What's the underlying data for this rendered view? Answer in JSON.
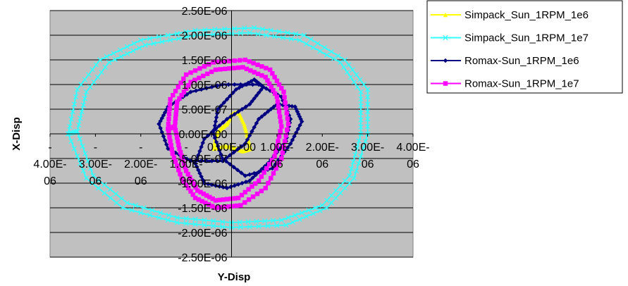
{
  "chart_data": {
    "type": "scatter",
    "title": "",
    "xlabel": "Y-Disp",
    "ylabel": "X-Disp",
    "xlim": [
      -4e-06,
      4e-06
    ],
    "ylim": [
      -2.5e-06,
      2.5e-06
    ],
    "x_tick_labels": [
      "-4.00E-06",
      "-3.00E-06",
      "-2.00E-06",
      "-1.00E-06",
      "0.00E+00",
      "1.00E-06",
      "2.00E-06",
      "3.00E-06",
      "4.00E-06"
    ],
    "y_tick_labels": [
      "2.50E-06",
      "2.00E-06",
      "1.50E-06",
      "1.00E-06",
      "5.00E-07",
      "0.00E+00",
      "-5.00E-07",
      "-1.00E-06",
      "-1.50E-06",
      "-2.00E-06",
      "-2.50E-06"
    ],
    "grid": true,
    "legend_position": "right-top",
    "plot_background": "#c0c0c0",
    "series": [
      {
        "name": "Simpack_Sun_1RPM_1e6",
        "color": "#ffff00",
        "marker": "triangle",
        "points": [
          [
            0.0,
            4e-07
          ],
          [
            1.5e-07,
            4.5e-07
          ],
          [
            2.8e-07,
            2e-07
          ],
          [
            3.5e-07,
            -5e-08
          ],
          [
            4.2e-07,
            -3e-07
          ],
          [
            2.5e-07,
            -3.5e-07
          ],
          [
            5e-08,
            -2.8e-07
          ],
          [
            -1.5e-07,
            -2.5e-07
          ],
          [
            -3.8e-07,
            -3e-07
          ],
          [
            -3.5e-07,
            -5e-08
          ],
          [
            -2.5e-07,
            1e-07
          ],
          [
            -1e-07,
            2e-07
          ],
          [
            0.0,
            4e-07
          ]
        ]
      },
      {
        "name": "Simpack_Sun_1RPM_1e7",
        "color": "#33ffff",
        "marker": "x",
        "points": [
          [
            -3.6e-06,
            0.0
          ],
          [
            -3.4e-06,
            9e-07
          ],
          [
            -2.9e-06,
            1.5e-06
          ],
          [
            -2e-06,
            1.9e-06
          ],
          [
            -8e-07,
            2.1e-06
          ],
          [
            5e-07,
            2.15e-06
          ],
          [
            1.6e-06,
            2e-06
          ],
          [
            2.5e-06,
            1.5e-06
          ],
          [
            3e-06,
            9e-07
          ],
          [
            3e-06,
            0.0
          ],
          [
            2.7e-06,
            -9e-07
          ],
          [
            2.1e-06,
            -1.5e-06
          ],
          [
            1.2e-06,
            -1.85e-06
          ],
          [
            0.0,
            -1.9e-06
          ],
          [
            -1.2e-06,
            -1.8e-06
          ],
          [
            -2.4e-06,
            -1.5e-06
          ],
          [
            -3.2e-06,
            -9e-07
          ],
          [
            -3.6e-06,
            0.0
          ],
          [
            -3.4e-06,
            5e-08
          ],
          [
            -3.2e-06,
            8.5e-07
          ],
          [
            -2.7e-06,
            1.45e-06
          ],
          [
            -1.9e-06,
            1.8e-06
          ],
          [
            -8e-07,
            2e-06
          ],
          [
            4e-07,
            2.05e-06
          ],
          [
            1.5e-06,
            1.9e-06
          ],
          [
            2.4e-06,
            1.45e-06
          ],
          [
            2.85e-06,
            8.5e-07
          ],
          [
            2.85e-06,
            0.0
          ],
          [
            2.6e-06,
            -8.5e-07
          ],
          [
            2e-06,
            -1.45e-06
          ],
          [
            1.1e-06,
            -1.75e-06
          ],
          [
            0.0,
            -1.8e-06
          ],
          [
            -1.2e-06,
            -1.7e-06
          ],
          [
            -2.3e-06,
            -1.4e-06
          ],
          [
            -3.05e-06,
            -8.5e-07
          ],
          [
            -3.4e-06,
            5e-08
          ]
        ]
      },
      {
        "name": "Romax-Sun_1RPM_1e6",
        "color": "#000080",
        "marker": "diamond",
        "points": [
          [
            -1.6e-06,
            2e-07
          ],
          [
            -1.4e-06,
            5.5e-07
          ],
          [
            -9e-07,
            8.5e-07
          ],
          [
            -2e-07,
            1e-06
          ],
          [
            6e-07,
            1e-06
          ],
          [
            1.1e-06,
            7.5e-07
          ],
          [
            1.3e-06,
            3e-07
          ],
          [
            1.2e-06,
            -1.5e-07
          ],
          [
            8e-07,
            -6e-07
          ],
          [
            4e-07,
            -9.5e-07
          ],
          [
            -1e-07,
            -1.1e-06
          ],
          [
            -6e-07,
            -1e-06
          ],
          [
            -8e-07,
            -6e-07
          ],
          [
            -6e-07,
            -1e-07
          ],
          [
            -1e-07,
            3e-07
          ],
          [
            4e-07,
            6e-07
          ],
          [
            7e-07,
            9.5e-07
          ],
          [
            5e-07,
            1.1e-06
          ],
          [
            1e-07,
            9e-07
          ],
          [
            -3e-07,
            5e-07
          ],
          [
            -4e-07,
            0.0
          ],
          [
            -2e-07,
            -5e-07
          ],
          [
            3e-07,
            -8.5e-07
          ],
          [
            9e-07,
            -7e-07
          ],
          [
            1.3e-06,
            -2e-07
          ],
          [
            1.55e-06,
            2.5e-07
          ],
          [
            1.4e-06,
            5.5e-07
          ],
          [
            1e-06,
            6e-07
          ],
          [
            6e-07,
            3e-07
          ],
          [
            3e-07,
            -2e-07
          ],
          [
            -2e-07,
            -5.5e-07
          ],
          [
            -9e-07,
            -5.5e-07
          ],
          [
            -1.4e-06,
            -3e-07
          ],
          [
            -1.6e-06,
            2e-07
          ]
        ]
      },
      {
        "name": "Romax-Sun_1RPM_1e7",
        "color": "#ff00ff",
        "marker": "square",
        "points": [
          [
            -1.4e-06,
            1e-07
          ],
          [
            -1.35e-06,
            7e-07
          ],
          [
            -1e-06,
            1.2e-06
          ],
          [
            -4e-07,
            1.45e-06
          ],
          [
            3e-07,
            1.5e-06
          ],
          [
            8.5e-07,
            1.3e-06
          ],
          [
            1.15e-06,
            8.5e-07
          ],
          [
            1.25e-06,
            2e-07
          ],
          [
            1.1e-06,
            -5e-07
          ],
          [
            7.5e-07,
            -1.1e-06
          ],
          [
            2e-07,
            -1.45e-06
          ],
          [
            -3.5e-07,
            -1.5e-06
          ],
          [
            -8e-07,
            -1.3e-06
          ],
          [
            -1.1e-06,
            -9e-07
          ],
          [
            -1.3e-06,
            -4e-07
          ],
          [
            -1.4e-06,
            1e-07
          ],
          [
            -1.25e-06,
            1.5e-07
          ],
          [
            -1.2e-06,
            6.5e-07
          ],
          [
            -9e-07,
            1.05e-06
          ],
          [
            -3.5e-07,
            1.3e-06
          ],
          [
            2.5e-07,
            1.35e-06
          ],
          [
            7.5e-07,
            1.15e-06
          ],
          [
            1e-06,
            7.5e-07
          ],
          [
            1.1e-06,
            1.5e-07
          ],
          [
            9.5e-07,
            -4.5e-07
          ],
          [
            6e-07,
            -9.5e-07
          ],
          [
            1.5e-07,
            -1.3e-06
          ],
          [
            -3.5e-07,
            -1.35e-06
          ],
          [
            -7.5e-07,
            -1.15e-06
          ],
          [
            -1e-06,
            -7.5e-07
          ],
          [
            -1.15e-06,
            -3e-07
          ],
          [
            -1.25e-06,
            1.5e-07
          ]
        ]
      }
    ]
  }
}
